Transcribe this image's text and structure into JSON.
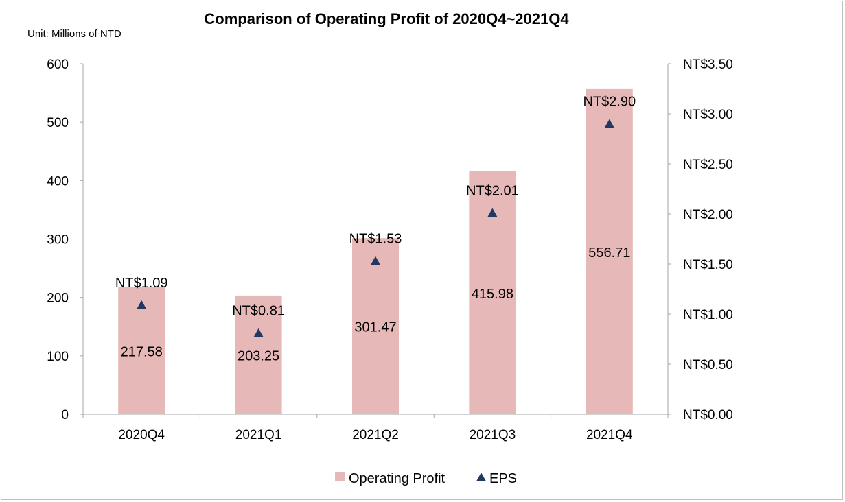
{
  "chart_data": {
    "type": "bar",
    "title": "Comparison of Operating Profit of 2020Q4~2021Q4",
    "unit_note": "Unit: Millions of NTD",
    "categories": [
      "2020Q4",
      "2021Q1",
      "2021Q2",
      "2021Q3",
      "2021Q4"
    ],
    "series": [
      {
        "name": "Operating Profit",
        "type": "bar",
        "axis": "left",
        "values": [
          217.58,
          203.25,
          301.47,
          415.98,
          556.71
        ],
        "labels": [
          "217.58",
          "203.25",
          "301.47",
          "415.98",
          "556.71"
        ],
        "color": "#e6b8b7"
      },
      {
        "name": "EPS",
        "type": "scatter",
        "marker": "triangle",
        "axis": "right",
        "values": [
          1.09,
          0.81,
          1.53,
          2.01,
          2.9
        ],
        "labels": [
          "NT$1.09",
          "NT$0.81",
          "NT$1.53",
          "NT$2.01",
          "NT$2.90"
        ],
        "color": "#1f3864"
      }
    ],
    "y_left": {
      "ylim": [
        0,
        600
      ],
      "ticks": [
        0,
        100,
        200,
        300,
        400,
        500,
        600
      ],
      "tick_labels": [
        "0",
        "100",
        "200",
        "300",
        "400",
        "500",
        "600"
      ]
    },
    "y_right": {
      "ylim": [
        0,
        3.5
      ],
      "ticks": [
        0,
        0.5,
        1.0,
        1.5,
        2.0,
        2.5,
        3.0,
        3.5
      ],
      "tick_labels": [
        "NT$0.00",
        "NT$0.50",
        "NT$1.00",
        "NT$1.50",
        "NT$2.00",
        "NT$2.50",
        "NT$3.00",
        "NT$3.50"
      ]
    },
    "grid": false,
    "legend_position": "bottom"
  }
}
